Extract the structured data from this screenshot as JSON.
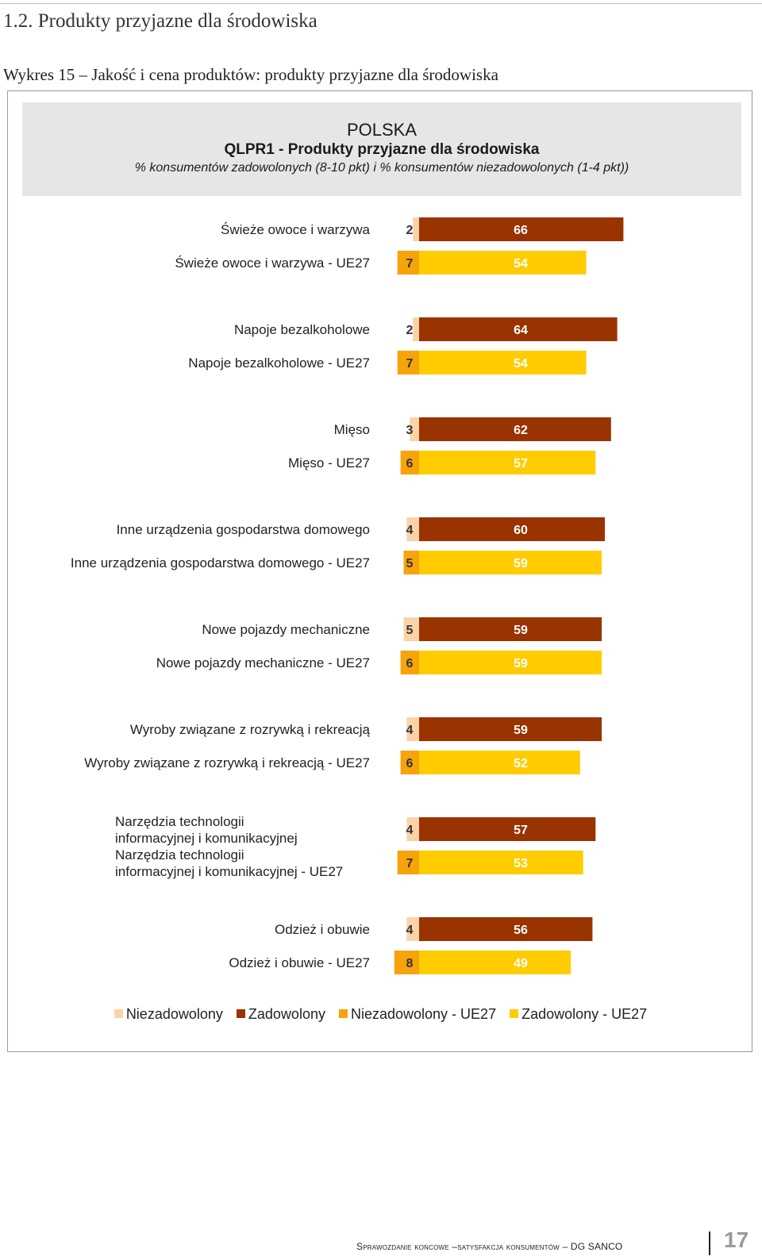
{
  "section_heading": "1.2. Produkty przyjazne dla środowiska",
  "figure_caption": "Wykres 15 – Jakość i cena produktów: produkty przyjazne dla środowiska",
  "chart_header": {
    "country": "POLSKA",
    "code": "QLPR1 - Produkty przyjazne dla środowiska",
    "description": "% konsumentów zadowolonych (8-10 pkt) i % konsumentów niezadowolonych (1-4 pkt))"
  },
  "colors": {
    "niezadowolony": "#fbd3a8",
    "zadowolony": "#993300",
    "niezadowolony_ue27": "#f7a30a",
    "zadowolony_ue27": "#ffcc00"
  },
  "chart_data": {
    "type": "bar",
    "orientation": "horizontal-stacked",
    "categories": [
      "Świeże owoce i warzywa",
      "Świeże owoce i warzywa - UE27",
      "Napoje bezalkoholowe",
      "Napoje bezalkoholowe - UE27",
      "Mięso",
      "Mięso - UE27",
      "Inne urządzenia gospodarstwa domowego",
      "Inne urządzenia gospodarstwa domowego - UE27",
      "Nowe pojazdy mechaniczne",
      "Nowe pojazdy mechaniczne - UE27",
      "Wyroby związane z rozrywką i rekreacją",
      "Wyroby związane z rozrywką i rekreacją - UE27",
      "Narzędzia technologii informacyjnej i komunikacyjnej",
      "Narzędzia technologii informacyjnej i komunikacyjnej - UE27",
      "Odzież i obuwie",
      "Odzież i obuwie - UE27"
    ],
    "series": [
      {
        "name": "Niezadowolony",
        "values": [
          2,
          null,
          2,
          null,
          3,
          null,
          4,
          null,
          5,
          null,
          4,
          null,
          4,
          null,
          4,
          null
        ]
      },
      {
        "name": "Zadowolony",
        "values": [
          66,
          null,
          64,
          null,
          62,
          null,
          60,
          null,
          59,
          null,
          59,
          null,
          57,
          null,
          56,
          null
        ]
      },
      {
        "name": "Niezadowolony - UE27",
        "values": [
          null,
          7,
          null,
          7,
          null,
          6,
          null,
          5,
          null,
          6,
          null,
          6,
          null,
          7,
          null,
          8
        ]
      },
      {
        "name": "Zadowolony - UE27",
        "values": [
          null,
          54,
          null,
          54,
          null,
          57,
          null,
          59,
          null,
          59,
          null,
          52,
          null,
          53,
          null,
          49
        ]
      }
    ],
    "legend_position": "bottom",
    "grid": false
  },
  "footer": {
    "text": "Sprawozdanie końcowe –satysfakcja konsumentów – DG SANCO",
    "page_number": "17"
  }
}
